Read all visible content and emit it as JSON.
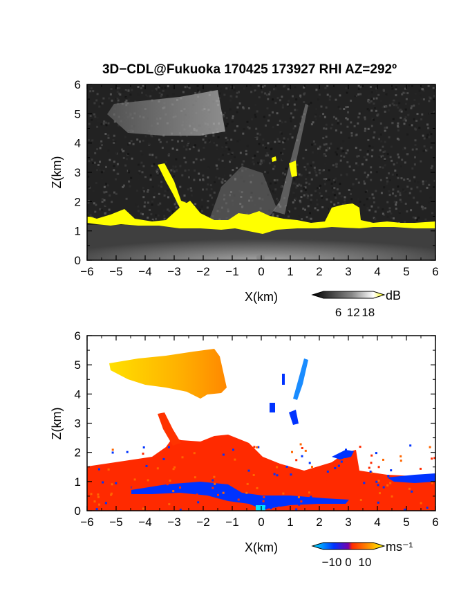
{
  "title": "3D−CDL@Fukuoka 170425 173927 RHI AZ=292º",
  "chart_data": [
    {
      "type": "heatmap",
      "name": "reflectivity",
      "xlabel": "X(km)",
      "ylabel": "Z(km)",
      "xlim": [
        -6,
        6
      ],
      "ylim": [
        0,
        6
      ],
      "xticks": [
        "−6",
        "−5",
        "−4",
        "−3",
        "−2",
        "−1",
        "0",
        "1",
        "2",
        "3",
        "4",
        "5",
        "6"
      ],
      "yticks": [
        "0",
        "1",
        "2",
        "3",
        "4",
        "5",
        "6"
      ],
      "colorbar": {
        "unit": "dB",
        "ticks": [
          "6",
          "12",
          "18"
        ],
        "range": [
          0,
          20
        ],
        "colors": [
          "#000000",
          "#ffffff",
          "#ffff00"
        ]
      },
      "features": [
        {
          "label": "cloud-base band (yellow)",
          "x": [
            -6,
            6
          ],
          "z": [
            1.1,
            1.6
          ],
          "value": 20
        },
        {
          "label": "upper plume",
          "x": [
            -5.4,
            -1.1
          ],
          "z": [
            4.5,
            5.8
          ],
          "value": 10
        },
        {
          "label": "slanted streak",
          "x": [
            -3.5,
            -2.2
          ],
          "z": [
            1.5,
            3.4
          ],
          "value": 20
        },
        {
          "label": "beam streak",
          "x": [
            0.9,
            1.6
          ],
          "z": [
            3.0,
            5.5
          ],
          "value": 12
        },
        {
          "label": "mound",
          "x": [
            2.6,
            3.5
          ],
          "z": [
            1.3,
            2.0
          ],
          "value": 20
        }
      ]
    },
    {
      "type": "heatmap",
      "name": "radial_velocity",
      "xlabel": "X(km)",
      "ylabel": "Z(km)",
      "xlim": [
        -6,
        6
      ],
      "ylim": [
        0,
        6
      ],
      "xticks": [
        "−6",
        "−5",
        "−4",
        "−3",
        "−2",
        "−1",
        "0",
        "1",
        "2",
        "3",
        "4",
        "5",
        "6"
      ],
      "yticks": [
        "0",
        "1",
        "2",
        "3",
        "4",
        "5",
        "6"
      ],
      "colorbar": {
        "unit": "ms⁻¹",
        "ticks": [
          "−10",
          "0",
          "10"
        ],
        "range": [
          -15,
          15
        ],
        "colors": [
          "#00e5ff",
          "#0033ff",
          "#ff2a00",
          "#ffff00"
        ]
      },
      "features": [
        {
          "label": "boundary-layer flow (red)",
          "x": [
            -6,
            6
          ],
          "z": [
            0.0,
            1.6
          ],
          "value": 2
        },
        {
          "label": "upper plume (yellow-orange)",
          "x": [
            -5.4,
            -1.1
          ],
          "z": [
            4.0,
            5.8
          ],
          "value": 10
        },
        {
          "label": "negative layer (blue)",
          "x": [
            -4.5,
            3.0
          ],
          "z": [
            0.3,
            0.9
          ],
          "value": -5
        },
        {
          "label": "cyan patch",
          "x": [
            -0.2,
            0.1
          ],
          "z": [
            0.0,
            0.1
          ],
          "value": -12
        },
        {
          "label": "beam streak (blue)",
          "x": [
            0.9,
            1.6
          ],
          "z": [
            3.0,
            5.3
          ],
          "value": -8
        }
      ]
    }
  ],
  "colors": {
    "yellow": "#ffff00",
    "red": "#ff2a00",
    "blue": "#0033ff",
    "cyan": "#00e5ff"
  }
}
